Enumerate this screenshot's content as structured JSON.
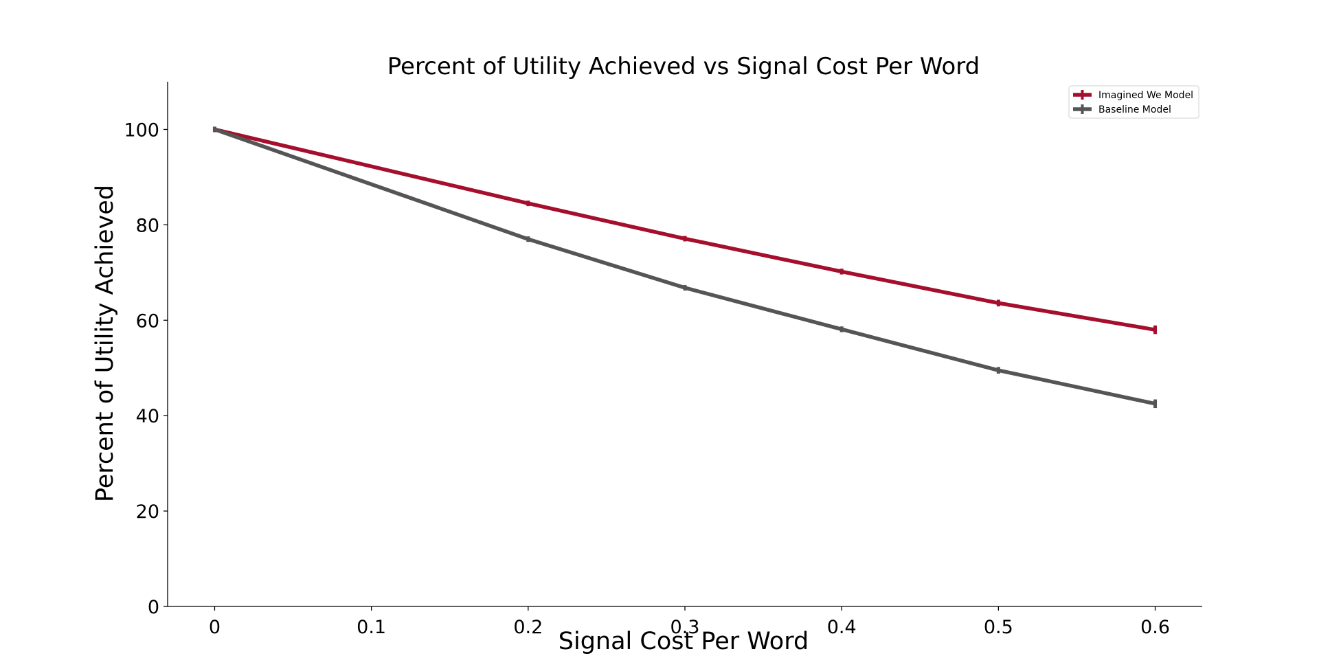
{
  "chart_data": {
    "type": "line",
    "title": "Percent of Utility Achieved vs Signal Cost Per Word",
    "xlabel": "Signal Cost Per Word",
    "ylabel": "Percent of Utility Achieved",
    "xlim": [
      -0.03,
      0.63
    ],
    "ylim": [
      0,
      110
    ],
    "xticks": [
      0,
      0.1,
      0.2,
      0.3,
      0.4,
      0.5,
      0.6
    ],
    "xtick_labels": [
      "0",
      "0.1",
      "0.2",
      "0.3",
      "0.4",
      "0.5",
      "0.6"
    ],
    "yticks": [
      0,
      20,
      40,
      60,
      80,
      100
    ],
    "ytick_labels": [
      "0",
      "20",
      "40",
      "60",
      "80",
      "100"
    ],
    "grid": false,
    "legend_position": "top-right",
    "x": [
      0,
      0.2,
      0.3,
      0.4,
      0.5,
      0.6
    ],
    "series": [
      {
        "name": "Imagined We Model",
        "color": "#a50f2d",
        "values": [
          100,
          84.5,
          77.1,
          70.2,
          63.6,
          58.0
        ],
        "errors": [
          0.2,
          0.4,
          0.5,
          0.6,
          0.7,
          0.9
        ]
      },
      {
        "name": "Baseline Model",
        "color": "#555555",
        "values": [
          100,
          77.0,
          66.8,
          58.1,
          49.5,
          42.5
        ],
        "errors": [
          0.2,
          0.4,
          0.5,
          0.6,
          0.7,
          0.9
        ]
      }
    ]
  }
}
